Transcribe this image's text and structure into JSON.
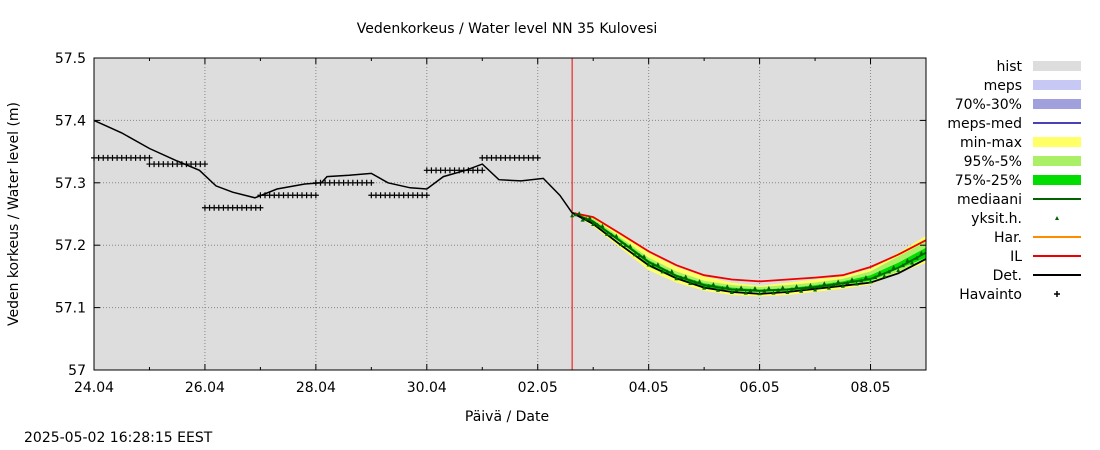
{
  "chart_data": {
    "type": "line",
    "title": "Vedenkorkeus / Water level   NN 35 Kulovesi",
    "xlabel": "Päivä / Date",
    "ylabel": "Veden korkeus / Water level (m)",
    "ylim": [
      57.0,
      57.5
    ],
    "yticks": [
      "57.5",
      "57.4",
      "57.3",
      "57.2",
      "57.1",
      "57"
    ],
    "xlim_days": [
      0,
      15
    ],
    "xticks": [
      {
        "day": 0,
        "label": "24.04"
      },
      {
        "day": 2,
        "label": "26.04"
      },
      {
        "day": 4,
        "label": "28.04"
      },
      {
        "day": 6,
        "label": "30.04"
      },
      {
        "day": 8,
        "label": "02.05"
      },
      {
        "day": 10,
        "label": "04.05"
      },
      {
        "day": 12,
        "label": "06.05"
      },
      {
        "day": 14,
        "label": "08.05"
      }
    ],
    "grid": true,
    "legend_position": "right",
    "now_day": 8.62,
    "legend": [
      {
        "label": "hist",
        "style": "box",
        "color": "#dddddd"
      },
      {
        "label": "meps",
        "style": "box",
        "color": "#c8c8f4"
      },
      {
        "label": "70%-30%",
        "style": "box",
        "color": "#a0a0dc"
      },
      {
        "label": "meps-med",
        "style": "line",
        "color": "#4a40b8"
      },
      {
        "label": "min-max",
        "style": "box",
        "color": "#ffff66"
      },
      {
        "label": "95%-5%",
        "style": "box",
        "color": "#aaf066"
      },
      {
        "label": "75%-25%",
        "style": "box",
        "color": "#00dd00"
      },
      {
        "label": "mediaani",
        "style": "line",
        "color": "#006400"
      },
      {
        "label": "yksit.h.",
        "style": "tri",
        "color": "#006400"
      },
      {
        "label": "Har.",
        "style": "line",
        "color": "#ff8c00"
      },
      {
        "label": "IL",
        "style": "line",
        "color": "#ee0000"
      },
      {
        "label": "Det.",
        "style": "line",
        "color": "#000000"
      },
      {
        "label": "Havainto",
        "style": "plus",
        "color": "#000000"
      }
    ],
    "observations": [
      {
        "x0": 0.0,
        "x1": 1.0,
        "y": 57.34
      },
      {
        "x0": 1.0,
        "x1": 2.0,
        "y": 57.33
      },
      {
        "x0": 2.0,
        "x1": 3.0,
        "y": 57.26
      },
      {
        "x0": 3.0,
        "x1": 4.0,
        "y": 57.28
      },
      {
        "x0": 4.0,
        "x1": 5.0,
        "y": 57.3
      },
      {
        "x0": 5.0,
        "x1": 6.0,
        "y": 57.28
      },
      {
        "x0": 6.0,
        "x1": 7.0,
        "y": 57.32
      },
      {
        "x0": 7.0,
        "x1": 8.0,
        "y": 57.34
      }
    ],
    "det_hist": [
      {
        "x": 0.0,
        "y": 57.4
      },
      {
        "x": 0.5,
        "y": 57.38
      },
      {
        "x": 1.0,
        "y": 57.355
      },
      {
        "x": 1.5,
        "y": 57.335
      },
      {
        "x": 1.9,
        "y": 57.32
      },
      {
        "x": 2.2,
        "y": 57.295
      },
      {
        "x": 2.5,
        "y": 57.285
      },
      {
        "x": 2.9,
        "y": 57.276
      },
      {
        "x": 3.3,
        "y": 57.29
      },
      {
        "x": 3.8,
        "y": 57.298
      },
      {
        "x": 4.1,
        "y": 57.3
      },
      {
        "x": 4.2,
        "y": 57.31
      },
      {
        "x": 4.6,
        "y": 57.312
      },
      {
        "x": 5.0,
        "y": 57.315
      },
      {
        "x": 5.3,
        "y": 57.3
      },
      {
        "x": 5.7,
        "y": 57.292
      },
      {
        "x": 6.0,
        "y": 57.29
      },
      {
        "x": 6.3,
        "y": 57.31
      },
      {
        "x": 6.7,
        "y": 57.32
      },
      {
        "x": 7.0,
        "y": 57.33
      },
      {
        "x": 7.3,
        "y": 57.305
      },
      {
        "x": 7.7,
        "y": 57.303
      },
      {
        "x": 8.1,
        "y": 57.307
      },
      {
        "x": 8.4,
        "y": 57.28
      },
      {
        "x": 8.62,
        "y": 57.252
      }
    ],
    "forecast_x": [
      8.62,
      9.0,
      9.5,
      10.0,
      10.5,
      11.0,
      11.5,
      12.0,
      12.5,
      13.0,
      13.5,
      14.0,
      14.5,
      15.0
    ],
    "series": [
      {
        "name": "min-max",
        "lower": [
          57.252,
          57.23,
          57.195,
          57.16,
          57.14,
          57.127,
          57.12,
          57.118,
          57.12,
          57.125,
          57.13,
          57.137,
          57.155,
          57.172
        ],
        "upper": [
          57.252,
          57.245,
          57.218,
          57.188,
          57.165,
          57.15,
          57.14,
          57.135,
          57.14,
          57.145,
          57.15,
          57.162,
          57.188,
          57.215
        ]
      },
      {
        "name": "95%-5%",
        "lower": [
          57.252,
          57.232,
          57.2,
          57.165,
          57.145,
          57.13,
          57.124,
          57.122,
          57.124,
          57.128,
          57.134,
          57.14,
          57.158,
          57.176
        ],
        "upper": [
          57.252,
          57.243,
          57.212,
          57.18,
          57.158,
          57.143,
          57.136,
          57.133,
          57.136,
          57.14,
          57.146,
          57.158,
          57.182,
          57.206
        ]
      },
      {
        "name": "75%-25%",
        "lower": [
          57.252,
          57.235,
          57.204,
          57.17,
          57.148,
          57.133,
          57.127,
          57.125,
          57.127,
          57.131,
          57.137,
          57.143,
          57.162,
          57.18
        ],
        "upper": [
          57.252,
          57.24,
          57.209,
          57.176,
          57.153,
          57.139,
          57.132,
          57.129,
          57.131,
          57.136,
          57.142,
          57.152,
          57.172,
          57.196
        ]
      },
      {
        "name": "mediaani",
        "values": [
          57.252,
          57.238,
          57.206,
          57.173,
          57.151,
          57.136,
          57.129,
          57.127,
          57.129,
          57.133,
          57.139,
          57.146,
          57.164,
          57.188
        ]
      },
      {
        "name": "IL",
        "values": [
          57.252,
          57.245,
          57.218,
          57.19,
          57.168,
          57.152,
          57.145,
          57.142,
          57.145,
          57.148,
          57.152,
          57.165,
          57.185,
          57.208
        ]
      },
      {
        "name": "Det.",
        "values": [
          57.252,
          57.234,
          57.2,
          57.168,
          57.147,
          57.132,
          57.125,
          57.122,
          57.125,
          57.13,
          57.135,
          57.14,
          57.155,
          57.178
        ]
      }
    ]
  },
  "footer": {
    "timestamp": "2025-05-02 16:28:15 EEST"
  }
}
